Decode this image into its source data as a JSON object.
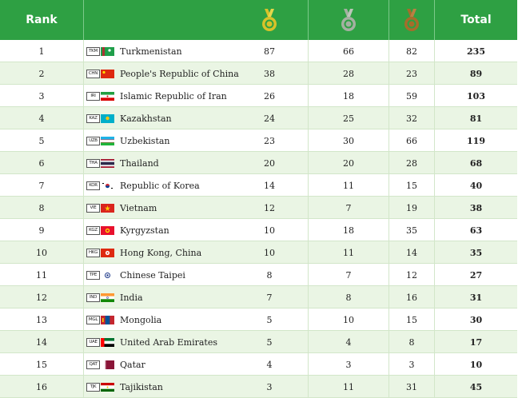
{
  "header": {
    "rank_label": "Rank",
    "total_label": "Total",
    "medal_icons": [
      "gold-medal-icon",
      "silver-medal-icon",
      "bronze-medal-icon"
    ],
    "colors": {
      "bar": "#2ea043",
      "gold": "#d7c229",
      "silver": "#a4b0a1",
      "bronze": "#a56d2b",
      "row_alt": "#eaf5e4"
    }
  },
  "rows": [
    {
      "rank": "1",
      "code": "TKM",
      "country": "Turkmenistan",
      "gold": "87",
      "silver": "66",
      "bronze": "82",
      "total": "235"
    },
    {
      "rank": "2",
      "code": "CHN",
      "country": "People's Republic of China",
      "gold": "38",
      "silver": "28",
      "bronze": "23",
      "total": "89"
    },
    {
      "rank": "3",
      "code": "IRI",
      "country": "Islamic Republic of Iran",
      "gold": "26",
      "silver": "18",
      "bronze": "59",
      "total": "103"
    },
    {
      "rank": "4",
      "code": "KAZ",
      "country": "Kazakhstan",
      "gold": "24",
      "silver": "25",
      "bronze": "32",
      "total": "81"
    },
    {
      "rank": "5",
      "code": "UZB",
      "country": "Uzbekistan",
      "gold": "23",
      "silver": "30",
      "bronze": "66",
      "total": "119"
    },
    {
      "rank": "6",
      "code": "THA",
      "country": "Thailand",
      "gold": "20",
      "silver": "20",
      "bronze": "28",
      "total": "68"
    },
    {
      "rank": "7",
      "code": "KOR",
      "country": "Republic of Korea",
      "gold": "14",
      "silver": "11",
      "bronze": "15",
      "total": "40"
    },
    {
      "rank": "8",
      "code": "VIE",
      "country": "Vietnam",
      "gold": "12",
      "silver": "7",
      "bronze": "19",
      "total": "38"
    },
    {
      "rank": "9",
      "code": "KGZ",
      "country": "Kyrgyzstan",
      "gold": "10",
      "silver": "18",
      "bronze": "35",
      "total": "63"
    },
    {
      "rank": "10",
      "code": "HKG",
      "country": "Hong Kong, China",
      "gold": "10",
      "silver": "11",
      "bronze": "14",
      "total": "35"
    },
    {
      "rank": "11",
      "code": "TPE",
      "country": "Chinese Taipei",
      "gold": "8",
      "silver": "7",
      "bronze": "12",
      "total": "27"
    },
    {
      "rank": "12",
      "code": "IND",
      "country": "India",
      "gold": "7",
      "silver": "8",
      "bronze": "16",
      "total": "31"
    },
    {
      "rank": "13",
      "code": "MGL",
      "country": "Mongolia",
      "gold": "5",
      "silver": "10",
      "bronze": "15",
      "total": "30"
    },
    {
      "rank": "14",
      "code": "UAE",
      "country": "United Arab Emirates",
      "gold": "5",
      "silver": "4",
      "bronze": "8",
      "total": "17"
    },
    {
      "rank": "15",
      "code": "QAT",
      "country": "Qatar",
      "gold": "4",
      "silver": "3",
      "bronze": "3",
      "total": "10"
    },
    {
      "rank": "16",
      "code": "TJK",
      "country": "Tajikistan",
      "gold": "3",
      "silver": "11",
      "bronze": "31",
      "total": "45"
    }
  ]
}
